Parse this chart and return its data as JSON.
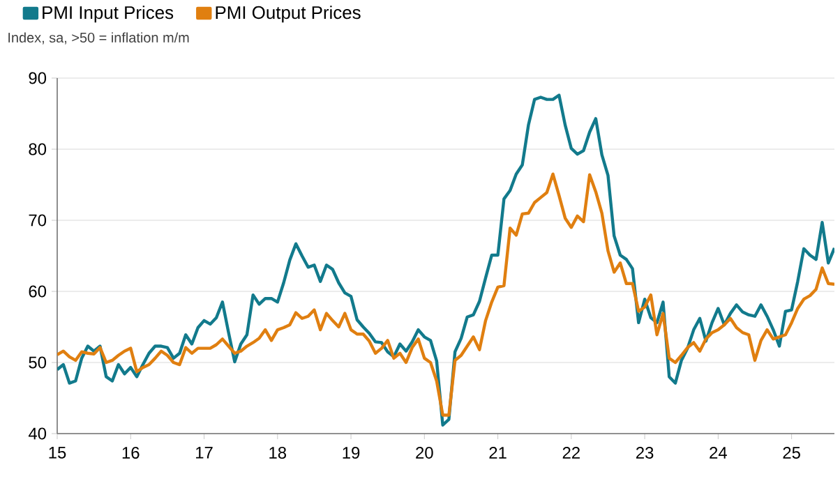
{
  "chart_data": {
    "type": "line",
    "subtitle": "Index, sa, >50 = inflation m/m",
    "x": [
      "2015-01",
      "2015-02",
      "2015-03",
      "2015-04",
      "2015-05",
      "2015-06",
      "2015-07",
      "2015-08",
      "2015-09",
      "2015-10",
      "2015-11",
      "2015-12",
      "2016-01",
      "2016-02",
      "2016-03",
      "2016-04",
      "2016-05",
      "2016-06",
      "2016-07",
      "2016-08",
      "2016-09",
      "2016-10",
      "2016-11",
      "2016-12",
      "2017-01",
      "2017-02",
      "2017-03",
      "2017-04",
      "2017-05",
      "2017-06",
      "2017-07",
      "2017-08",
      "2017-09",
      "2017-10",
      "2017-11",
      "2017-12",
      "2018-01",
      "2018-02",
      "2018-03",
      "2018-04",
      "2018-05",
      "2018-06",
      "2018-07",
      "2018-08",
      "2018-09",
      "2018-10",
      "2018-11",
      "2018-12",
      "2019-01",
      "2019-02",
      "2019-03",
      "2019-04",
      "2019-05",
      "2019-06",
      "2019-07",
      "2019-08",
      "2019-09",
      "2019-10",
      "2019-11",
      "2019-12",
      "2020-01",
      "2020-02",
      "2020-03",
      "2020-04",
      "2020-05",
      "2020-06",
      "2020-07",
      "2020-08",
      "2020-09",
      "2020-10",
      "2020-11",
      "2020-12",
      "2021-01",
      "2021-02",
      "2021-03",
      "2021-04",
      "2021-05",
      "2021-06",
      "2021-07",
      "2021-08",
      "2021-09",
      "2021-10",
      "2021-11",
      "2021-12",
      "2022-01",
      "2022-02",
      "2022-03",
      "2022-04",
      "2022-05",
      "2022-06",
      "2022-07",
      "2022-08",
      "2022-09",
      "2022-10",
      "2022-11",
      "2022-12",
      "2023-01",
      "2023-02",
      "2023-03",
      "2023-04",
      "2023-05",
      "2023-06",
      "2023-07",
      "2023-08",
      "2023-09",
      "2023-10",
      "2023-11",
      "2023-12",
      "2024-01",
      "2024-02",
      "2024-03",
      "2024-04",
      "2024-05",
      "2024-06",
      "2024-07",
      "2024-08",
      "2024-09",
      "2024-10",
      "2024-11",
      "2024-12",
      "2025-01",
      "2025-02",
      "2025-03",
      "2025-04",
      "2025-05",
      "2025-06",
      "2025-07",
      "2025-08"
    ],
    "series": [
      {
        "name": "PMI Input Prices",
        "color": "#127a8c",
        "values": [
          49,
          49.7,
          47.1,
          47.4,
          50.6,
          52.3,
          51.6,
          52.3,
          48,
          47.4,
          49.7,
          48.4,
          49.3,
          48,
          49.7,
          51.3,
          52.3,
          52.3,
          52.1,
          50.6,
          51.3,
          53.9,
          52.6,
          54.9,
          55.9,
          55.4,
          56.3,
          58.5,
          54.2,
          50.1,
          52.6,
          53.9,
          59.5,
          58.2,
          59,
          59,
          58.5,
          61.2,
          64.4,
          66.7,
          65,
          63.4,
          63.7,
          61.4,
          63.7,
          63.1,
          61.2,
          59.8,
          59.3,
          56,
          55,
          54.1,
          52.9,
          52.8,
          51.5,
          50.8,
          52.6,
          51.6,
          52.9,
          54.6,
          53.6,
          53.1,
          50.2,
          41.2,
          42,
          51.5,
          53.4,
          56.4,
          56.7,
          58.6,
          61.9,
          65.1,
          65.1,
          73,
          74.2,
          76.5,
          77.8,
          83.4,
          87,
          87.3,
          87,
          87,
          87.6,
          83.4,
          80.1,
          79.3,
          79.8,
          82.4,
          84.3,
          79.2,
          76.3,
          67.8,
          65.1,
          64.5,
          63.2,
          55.6,
          58.9,
          56.3,
          55.6,
          58.5,
          48,
          47.1,
          50.3,
          52,
          54.6,
          56.2,
          53,
          55.6,
          57.6,
          55.3,
          56.9,
          58.1,
          57.1,
          56.7,
          56.5,
          58.1,
          56.5,
          54.6,
          52.3,
          57.2,
          57.4,
          61.4,
          66,
          65.1,
          64.5,
          69.7,
          64,
          66.1
        ]
      },
      {
        "name": "PMI Output Prices",
        "color": "#e07f10",
        "values": [
          51.1,
          51.6,
          50.8,
          50.3,
          51.5,
          51.3,
          51.2,
          52.1,
          50,
          50.3,
          51,
          51.6,
          52,
          48.7,
          49.3,
          49.7,
          50.6,
          51.6,
          51,
          50,
          49.7,
          52.1,
          51.3,
          52,
          52,
          52,
          52.5,
          53.3,
          52.3,
          51.3,
          51.6,
          52.3,
          52.8,
          53.4,
          54.6,
          53.1,
          54.6,
          54.9,
          55.3,
          57,
          56.2,
          56.5,
          57.4,
          54.6,
          56.9,
          55.9,
          55,
          56.9,
          54.6,
          54,
          54,
          53,
          51.3,
          52,
          53.1,
          50.6,
          51.3,
          50,
          52.1,
          53.3,
          50.6,
          50,
          47.4,
          42.6,
          42.6,
          50.3,
          51,
          52.3,
          53.6,
          51.8,
          55.9,
          58.5,
          60.6,
          60.8,
          68.9,
          67.9,
          70.9,
          71,
          72.5,
          73.2,
          73.9,
          76.5,
          73.5,
          70.3,
          69,
          70.6,
          69.8,
          76.4,
          74,
          71,
          65.7,
          62.7,
          64,
          61.1,
          61.1,
          57.2,
          57.8,
          59.5,
          53.9,
          56.9,
          50.6,
          50,
          51,
          52.1,
          52.8,
          51.6,
          53.3,
          54.2,
          54.6,
          55.3,
          56.2,
          54.9,
          54.2,
          53.9,
          50.3,
          53.1,
          54.6,
          53.3,
          53.6,
          53.9,
          55.6,
          57.6,
          58.9,
          59.4,
          60.3,
          63.3,
          61.1,
          61
        ]
      }
    ],
    "xlim": [
      "2015-01",
      "2025-08"
    ],
    "xticks": [
      {
        "value": "2015-01",
        "label": "15"
      },
      {
        "value": "2016-01",
        "label": "16"
      },
      {
        "value": "2017-01",
        "label": "17"
      },
      {
        "value": "2018-01",
        "label": "18"
      },
      {
        "value": "2019-01",
        "label": "19"
      },
      {
        "value": "2020-01",
        "label": "20"
      },
      {
        "value": "2021-01",
        "label": "21"
      },
      {
        "value": "2022-01",
        "label": "22"
      },
      {
        "value": "2023-01",
        "label": "23"
      },
      {
        "value": "2024-01",
        "label": "24"
      },
      {
        "value": "2025-01",
        "label": "25"
      }
    ],
    "ylim": [
      40,
      90
    ],
    "yticks": [
      40,
      50,
      60,
      70,
      80,
      90
    ],
    "grid": "y",
    "legend": "top left",
    "marker": "none",
    "line_style": "solid"
  }
}
